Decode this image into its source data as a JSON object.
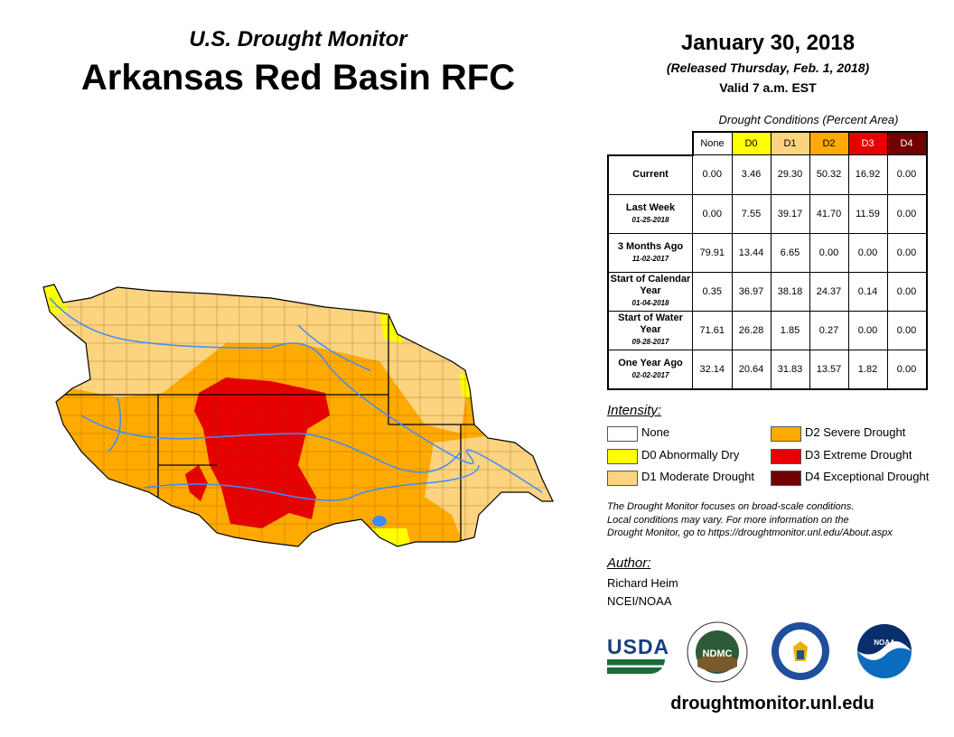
{
  "header": {
    "subtitle": "U.S. Drought Monitor",
    "title": "Arkansas Red Basin RFC",
    "date": "January 30, 2018",
    "released": "(Released Thursday, Feb. 1, 2018)",
    "valid": "Valid 7 a.m. EST"
  },
  "table": {
    "caption": "Drought Conditions (Percent Area)",
    "columns": [
      "None",
      "D0",
      "D1",
      "D2",
      "D3",
      "D4"
    ],
    "column_colors": [
      "#ffffff",
      "#ffff00",
      "#fcd37f",
      "#ffaa00",
      "#e60000",
      "#730000"
    ],
    "rows": [
      {
        "label": "Current",
        "date": "",
        "values": [
          "0.00",
          "3.46",
          "29.30",
          "50.32",
          "16.92",
          "0.00"
        ]
      },
      {
        "label": "Last Week",
        "date": "01-25-2018",
        "values": [
          "0.00",
          "7.55",
          "39.17",
          "41.70",
          "11.59",
          "0.00"
        ]
      },
      {
        "label": "3 Months Ago",
        "date": "11-02-2017",
        "values": [
          "79.91",
          "13.44",
          "6.65",
          "0.00",
          "0.00",
          "0.00"
        ]
      },
      {
        "label": "Start of Calendar Year",
        "date": "01-04-2018",
        "values": [
          "0.35",
          "36.97",
          "38.18",
          "24.37",
          "0.14",
          "0.00"
        ]
      },
      {
        "label": "Start of Water Year",
        "date": "09-28-2017",
        "values": [
          "71.61",
          "26.28",
          "1.85",
          "0.27",
          "0.00",
          "0.00"
        ]
      },
      {
        "label": "One Year Ago",
        "date": "02-02-2017",
        "values": [
          "32.14",
          "20.64",
          "31.83",
          "13.57",
          "1.82",
          "0.00"
        ]
      }
    ]
  },
  "legend": {
    "heading": "Intensity:",
    "items": [
      {
        "label": "None",
        "color": "#ffffff"
      },
      {
        "label": "D0 Abnormally Dry",
        "color": "#ffff00"
      },
      {
        "label": "D1 Moderate Drought",
        "color": "#fcd37f"
      },
      {
        "label": "D2 Severe Drought",
        "color": "#ffaa00"
      },
      {
        "label": "D3 Extreme Drought",
        "color": "#e60000"
      },
      {
        "label": "D4 Exceptional Drought",
        "color": "#730000"
      }
    ]
  },
  "note": [
    "The Drought Monitor focuses on broad-scale conditions.",
    "Local conditions may vary. For more information on the",
    "Drought Monitor, go to https://droughtmonitor.unl.edu/About.aspx"
  ],
  "author": {
    "heading": "Author:",
    "name": "Richard Heim",
    "org": "NCEI/NOAA"
  },
  "logos": {
    "usda": "USDA",
    "ndmc": "NDMC",
    "noaa": "NOAA"
  },
  "footer_url": "droughtmonitor.unl.edu"
}
